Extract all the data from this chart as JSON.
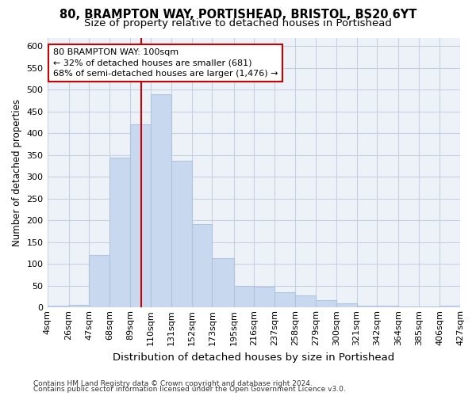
{
  "title1": "80, BRAMPTON WAY, PORTISHEAD, BRISTOL, BS20 6YT",
  "title2": "Size of property relative to detached houses in Portishead",
  "xlabel": "Distribution of detached houses by size in Portishead",
  "ylabel": "Number of detached properties",
  "footnote1": "Contains HM Land Registry data © Crown copyright and database right 2024.",
  "footnote2": "Contains public sector information licensed under the Open Government Licence v3.0.",
  "annotation_line1": "80 BRAMPTON WAY: 100sqm",
  "annotation_line2": "← 32% of detached houses are smaller (681)",
  "annotation_line3": "68% of semi-detached houses are larger (1,476) →",
  "property_size": 100,
  "bar_color": "#c8d8ee",
  "bar_edge_color": "#b0c4de",
  "vline_color": "#cc0000",
  "annotation_box_edge_color": "#cc0000",
  "bins": [
    4,
    26,
    47,
    68,
    89,
    110,
    131,
    152,
    173,
    195,
    216,
    237,
    258,
    279,
    300,
    321,
    342,
    364,
    385,
    406,
    427
  ],
  "counts": [
    5,
    6,
    120,
    345,
    420,
    490,
    337,
    192,
    113,
    50,
    47,
    35,
    27,
    17,
    10,
    5,
    5,
    3,
    2,
    5
  ],
  "ylim": [
    0,
    620
  ],
  "yticks": [
    0,
    50,
    100,
    150,
    200,
    250,
    300,
    350,
    400,
    450,
    500,
    550,
    600
  ],
  "bg_color": "#ffffff",
  "plot_bg_color": "#edf2f9",
  "grid_color": "#c8d0e0",
  "title1_fontsize": 10.5,
  "title2_fontsize": 9.5,
  "xlabel_fontsize": 9.5,
  "ylabel_fontsize": 8.5,
  "tick_fontsize": 8,
  "annotation_fontsize": 8,
  "footnote_fontsize": 6.5
}
